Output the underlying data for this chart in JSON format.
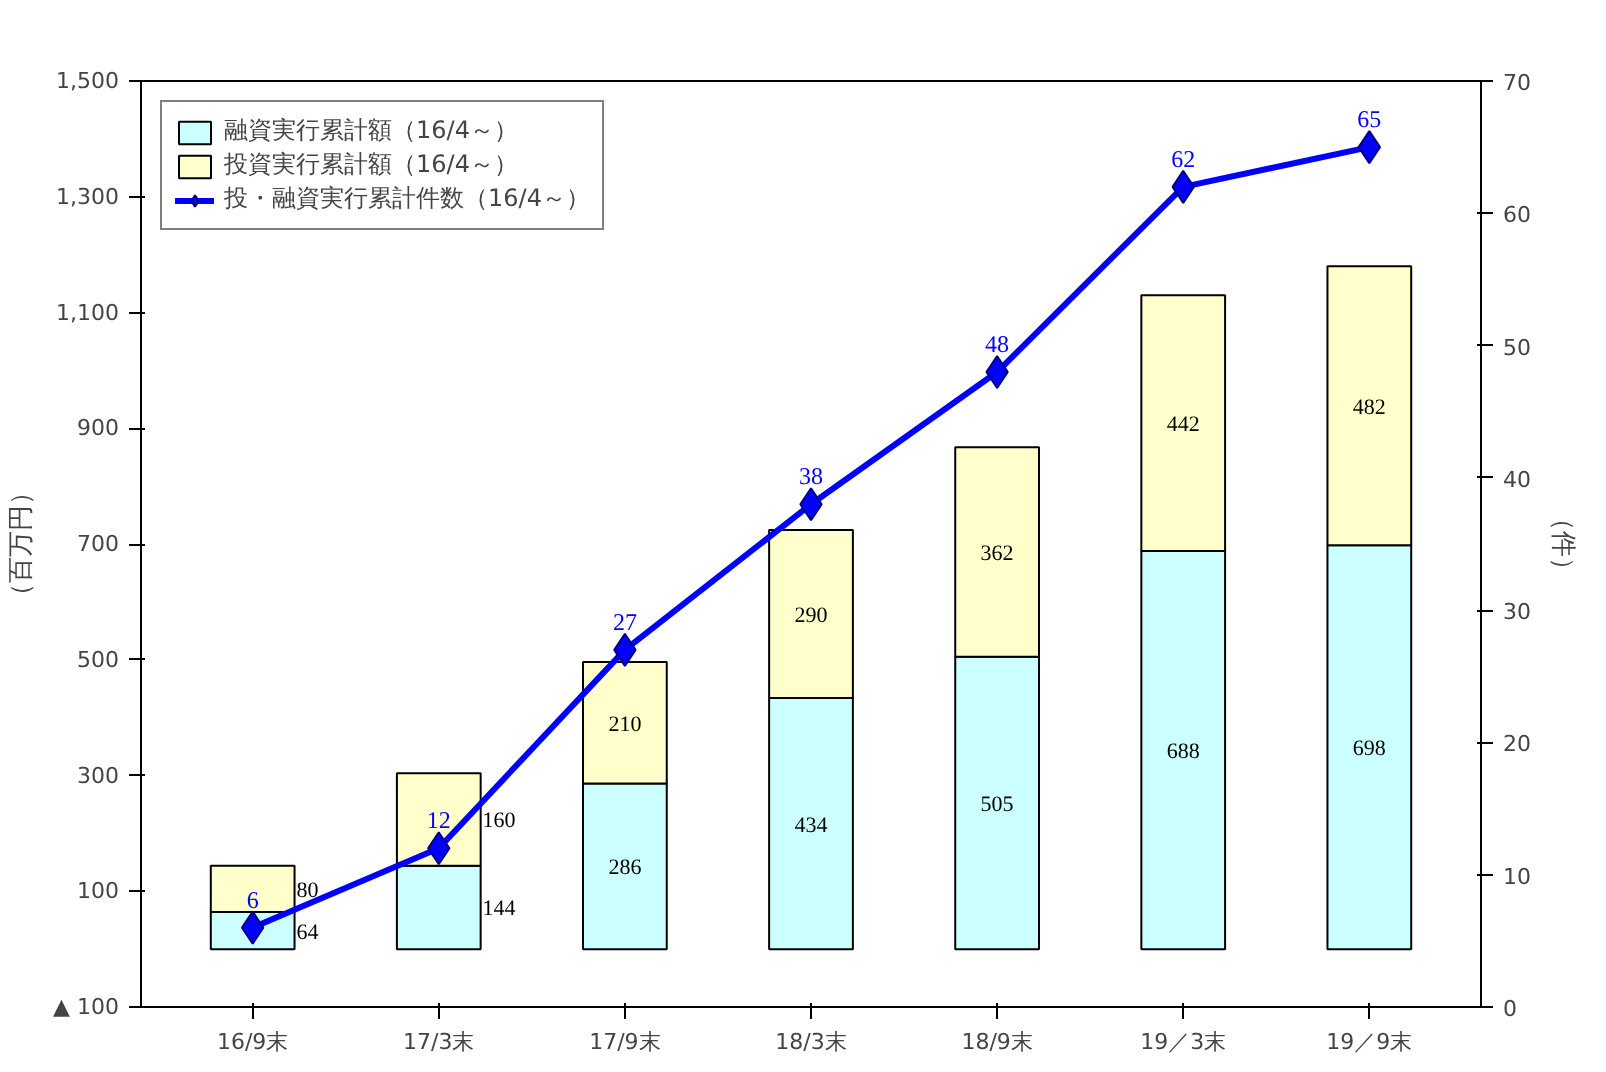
{
  "chart_data": {
    "type": "bar",
    "stacked": true,
    "categories": [
      "16/9末",
      "17/3末",
      "17/9末",
      "18/3末",
      "18/9末",
      "19／3末",
      "19／9末"
    ],
    "ylabel": "（百万円）",
    "y2label": "（件）",
    "ylim": [
      -100,
      1500
    ],
    "yticks": [
      {
        "value": -100,
        "label": "▲ 100"
      },
      100,
      300,
      500,
      700,
      900,
      {
        "value": 1100,
        "label": "1,100"
      },
      {
        "value": 1300,
        "label": "1,300"
      },
      {
        "value": 1500,
        "label": "1,500"
      }
    ],
    "y2lim": [
      0,
      70
    ],
    "y2ticks": [
      0,
      10,
      20,
      30,
      40,
      50,
      60,
      70
    ],
    "series": [
      {
        "name": "融資実行累計額（16/4～）",
        "color": "#ccffff",
        "values": [
          64,
          144,
          286,
          434,
          505,
          688,
          698
        ]
      },
      {
        "name": "投資実行累計額（16/4～）",
        "color": "#ffffcc",
        "values": [
          80,
          160,
          210,
          290,
          362,
          442,
          482
        ]
      },
      {
        "name": "投・融資実行累計件数（16/4～）",
        "type": "line",
        "axis": "y2",
        "color": "#0000ff",
        "marker": "diamond",
        "values": [
          6,
          12,
          27,
          38,
          48,
          62,
          65
        ]
      }
    ],
    "data_labels": true,
    "legend": "top left",
    "grid": false
  }
}
